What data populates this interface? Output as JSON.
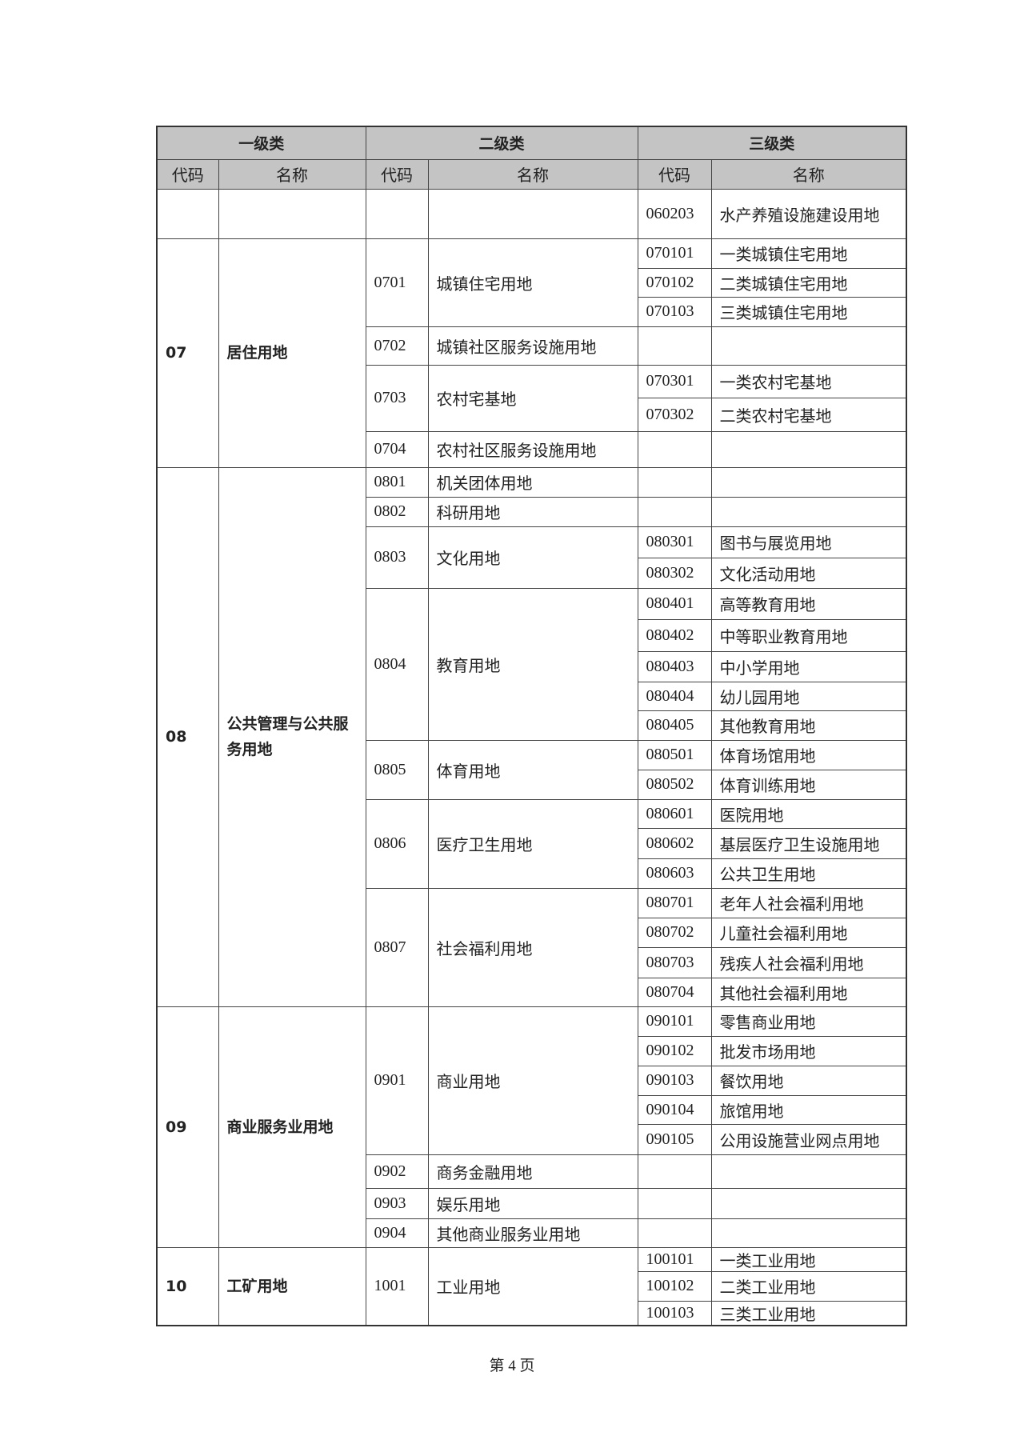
{
  "header": {
    "level1": "一级类",
    "level2": "二级类",
    "level3": "三级类",
    "code": "代码",
    "name": "名称"
  },
  "groups": [
    {
      "code": "",
      "name": "",
      "level2": [
        {
          "code": "",
          "name": "",
          "level3": [
            {
              "code": "060203",
              "name": "水产养殖设施建设用地"
            }
          ]
        }
      ]
    },
    {
      "code": "07",
      "name": "居住用地",
      "level2": [
        {
          "code": "0701",
          "name": "城镇住宅用地",
          "level3": [
            {
              "code": "070101",
              "name": "一类城镇住宅用地"
            },
            {
              "code": "070102",
              "name": "二类城镇住宅用地"
            },
            {
              "code": "070103",
              "name": "三类城镇住宅用地"
            }
          ]
        },
        {
          "code": "0702",
          "name": "城镇社区服务设施用地",
          "level3": []
        },
        {
          "code": "0703",
          "name": "农村宅基地",
          "level3": [
            {
              "code": "070301",
              "name": "一类农村宅基地"
            },
            {
              "code": "070302",
              "name": "二类农村宅基地"
            }
          ]
        },
        {
          "code": "0704",
          "name": "农村社区服务设施用地",
          "level3": []
        }
      ]
    },
    {
      "code": "08",
      "name": "公共管理与公共服务用地",
      "level2": [
        {
          "code": "0801",
          "name": "机关团体用地",
          "level3": []
        },
        {
          "code": "0802",
          "name": "科研用地",
          "level3": []
        },
        {
          "code": "0803",
          "name": "文化用地",
          "level3": [
            {
              "code": "080301",
              "name": "图书与展览用地"
            },
            {
              "code": "080302",
              "name": "文化活动用地"
            }
          ]
        },
        {
          "code": "0804",
          "name": "教育用地",
          "level3": [
            {
              "code": "080401",
              "name": "高等教育用地"
            },
            {
              "code": "080402",
              "name": "中等职业教育用地"
            },
            {
              "code": "080403",
              "name": "中小学用地"
            },
            {
              "code": "080404",
              "name": "幼儿园用地"
            },
            {
              "code": "080405",
              "name": "其他教育用地"
            }
          ]
        },
        {
          "code": "0805",
          "name": "体育用地",
          "level3": [
            {
              "code": "080501",
              "name": "体育场馆用地"
            },
            {
              "code": "080502",
              "name": "体育训练用地"
            }
          ]
        },
        {
          "code": "0806",
          "name": "医疗卫生用地",
          "level3": [
            {
              "code": "080601",
              "name": "医院用地"
            },
            {
              "code": "080602",
              "name": "基层医疗卫生设施用地"
            },
            {
              "code": "080603",
              "name": "公共卫生用地"
            }
          ]
        },
        {
          "code": "0807",
          "name": "社会福利用地",
          "level3": [
            {
              "code": "080701",
              "name": "老年人社会福利用地"
            },
            {
              "code": "080702",
              "name": "儿童社会福利用地"
            },
            {
              "code": "080703",
              "name": "残疾人社会福利用地"
            },
            {
              "code": "080704",
              "name": "其他社会福利用地"
            }
          ]
        }
      ]
    },
    {
      "code": "09",
      "name": "商业服务业用地",
      "level2": [
        {
          "code": "0901",
          "name": "商业用地",
          "level3": [
            {
              "code": "090101",
              "name": "零售商业用地"
            },
            {
              "code": "090102",
              "name": "批发市场用地"
            },
            {
              "code": "090103",
              "name": "餐饮用地"
            },
            {
              "code": "090104",
              "name": "旅馆用地"
            },
            {
              "code": "090105",
              "name": "公用设施营业网点用地"
            }
          ]
        },
        {
          "code": "0902",
          "name": "商务金融用地",
          "level3": []
        },
        {
          "code": "0903",
          "name": "娱乐用地",
          "level3": []
        },
        {
          "code": "0904",
          "name": "其他商业服务业用地",
          "level3": []
        }
      ]
    },
    {
      "code": "10",
      "name": "工矿用地",
      "level2": [
        {
          "code": "1001",
          "name": "工业用地",
          "level3": [
            {
              "code": "100101",
              "name": "一类工业用地"
            },
            {
              "code": "100102",
              "name": "二类工业用地"
            },
            {
              "code": "100103",
              "name": "三类工业用地"
            }
          ]
        }
      ]
    }
  ],
  "footer": {
    "page_label": "第 4 页"
  }
}
